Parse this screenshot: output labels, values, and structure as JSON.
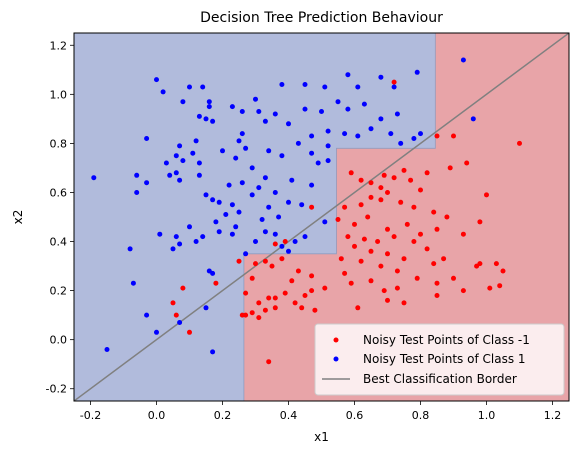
{
  "chart_data": {
    "type": "scatter",
    "title": "Decision Tree Prediction Behaviour",
    "xlabel": "x1",
    "ylabel": "x2",
    "xlim": [
      -0.25,
      1.25
    ],
    "ylim": [
      -0.25,
      1.25
    ],
    "xticks": [
      "-0.2",
      "0.0",
      "0.2",
      "0.4",
      "0.6",
      "0.8",
      "1.0",
      "1.2"
    ],
    "yticks": [
      "-0.2",
      "0.0",
      "0.2",
      "0.4",
      "0.6",
      "0.8",
      "1.0",
      "1.2"
    ],
    "grid": false,
    "legend_position": "lower-right",
    "colors": {
      "class_neg": "#ff0000",
      "class_pos": "#0000ff",
      "region_neg": "#e8a4a8",
      "region_pos": "#b1bbdc",
      "border_line": "#808080"
    },
    "decision_regions": {
      "class_pos_region": [
        [
          -0.25,
          1.25
        ],
        [
          0.845,
          1.25
        ],
        [
          0.845,
          0.78
        ],
        [
          0.545,
          0.78
        ],
        [
          0.545,
          0.35
        ],
        [
          0.265,
          0.35
        ],
        [
          0.265,
          -0.25
        ],
        [
          -0.25,
          -0.25
        ]
      ]
    },
    "border_line": {
      "name": "Best Classification Border",
      "x": [
        -0.25,
        1.25
      ],
      "y": [
        -0.25,
        1.25
      ]
    },
    "series": [
      {
        "name": "Noisy Test Points of Class -1",
        "color": "#ff0000",
        "points": [
          [
            0.72,
            1.05
          ],
          [
            0.85,
            0.83
          ],
          [
            0.9,
            0.83
          ],
          [
            1.1,
            0.8
          ],
          [
            0.94,
            0.72
          ],
          [
            0.89,
            0.7
          ],
          [
            0.82,
            0.68
          ],
          [
            0.75,
            0.69
          ],
          [
            0.69,
            0.67
          ],
          [
            0.59,
            0.68
          ],
          [
            0.62,
            0.65
          ],
          [
            0.65,
            0.64
          ],
          [
            0.68,
            0.62
          ],
          [
            0.72,
            0.66
          ],
          [
            0.77,
            0.65
          ],
          [
            0.8,
            0.61
          ],
          [
            0.7,
            0.6
          ],
          [
            0.65,
            0.58
          ],
          [
            0.57,
            0.54
          ],
          [
            0.62,
            0.55
          ],
          [
            0.68,
            0.57
          ],
          [
            0.74,
            0.56
          ],
          [
            0.78,
            0.54
          ],
          [
            0.84,
            0.52
          ],
          [
            0.88,
            0.5
          ],
          [
            1.0,
            0.59
          ],
          [
            0.98,
            0.48
          ],
          [
            0.55,
            0.49
          ],
          [
            0.6,
            0.47
          ],
          [
            0.64,
            0.5
          ],
          [
            0.7,
            0.45
          ],
          [
            0.76,
            0.47
          ],
          [
            0.8,
            0.43
          ],
          [
            0.85,
            0.45
          ],
          [
            0.93,
            0.43
          ],
          [
            0.58,
            0.42
          ],
          [
            0.63,
            0.41
          ],
          [
            0.67,
            0.4
          ],
          [
            0.72,
            0.42
          ],
          [
            0.78,
            0.4
          ],
          [
            0.82,
            0.37
          ],
          [
            0.6,
            0.38
          ],
          [
            0.65,
            0.36
          ],
          [
            0.7,
            0.35
          ],
          [
            0.75,
            0.33
          ],
          [
            0.84,
            0.31
          ],
          [
            0.87,
            0.33
          ],
          [
            0.56,
            0.33
          ],
          [
            0.62,
            0.32
          ],
          [
            0.68,
            0.3
          ],
          [
            0.73,
            0.28
          ],
          [
            0.79,
            0.25
          ],
          [
            0.57,
            0.27
          ],
          [
            0.65,
            0.24
          ],
          [
            0.59,
            0.23
          ],
          [
            0.69,
            0.2
          ],
          [
            0.73,
            0.21
          ],
          [
            0.85,
            0.23
          ],
          [
            0.9,
            0.25
          ],
          [
            0.93,
            0.2
          ],
          [
            1.01,
            0.21
          ],
          [
            1.04,
            0.22
          ],
          [
            0.97,
            0.3
          ],
          [
            1.03,
            0.31
          ],
          [
            1.05,
            0.28
          ],
          [
            0.98,
            0.31
          ],
          [
            0.85,
            0.18
          ],
          [
            0.7,
            0.16
          ],
          [
            0.75,
            0.15
          ],
          [
            0.61,
            0.13
          ],
          [
            0.51,
            0.21
          ],
          [
            0.47,
            0.2
          ],
          [
            0.45,
            0.18
          ],
          [
            0.41,
            0.24
          ],
          [
            0.39,
            0.19
          ],
          [
            0.43,
            0.28
          ],
          [
            0.47,
            0.26
          ],
          [
            0.38,
            0.33
          ],
          [
            0.33,
            0.32
          ],
          [
            0.35,
            0.3
          ],
          [
            0.3,
            0.31
          ],
          [
            0.29,
            0.25
          ],
          [
            0.34,
            0.17
          ],
          [
            0.36,
            0.17
          ],
          [
            0.31,
            0.15
          ],
          [
            0.33,
            0.12
          ],
          [
            0.29,
            0.11
          ],
          [
            0.31,
            0.09
          ],
          [
            0.36,
            0.13
          ],
          [
            0.42,
            0.15
          ],
          [
            0.44,
            0.13
          ],
          [
            0.48,
            0.12
          ],
          [
            0.27,
            0.1
          ],
          [
            0.26,
            0.1
          ],
          [
            0.27,
            0.19
          ],
          [
            0.25,
            0.32
          ],
          [
            0.34,
            -0.09
          ],
          [
            0.36,
            0.39
          ],
          [
            0.39,
            0.4
          ],
          [
            0.08,
            0.21
          ],
          [
            0.06,
            0.1
          ],
          [
            0.05,
            0.15
          ],
          [
            0.1,
            0.03
          ],
          [
            0.18,
            0.23
          ],
          [
            0.47,
            0.54
          ]
        ]
      },
      {
        "name": "Noisy Test Points of Class 1",
        "color": "#0000ff",
        "points": [
          [
            0.93,
            1.14
          ],
          [
            0.79,
            1.09
          ],
          [
            0.72,
            1.03
          ],
          [
            0.68,
            1.07
          ],
          [
            0.61,
            1.03
          ],
          [
            0.58,
            1.08
          ],
          [
            0.51,
            1.03
          ],
          [
            0.45,
            1.04
          ],
          [
            0.38,
            1.04
          ],
          [
            0.36,
            0.92
          ],
          [
            0.31,
            0.93
          ],
          [
            0.3,
            0.98
          ],
          [
            0.26,
            0.93
          ],
          [
            0.23,
            0.95
          ],
          [
            0.16,
            0.97
          ],
          [
            0.17,
            0.89
          ],
          [
            0.1,
            1.03
          ],
          [
            0.14,
            1.03
          ],
          [
            0.16,
            0.95
          ],
          [
            0.15,
            0.9
          ],
          [
            0.13,
            0.91
          ],
          [
            0.08,
            0.97
          ],
          [
            0.02,
            1.01
          ],
          [
            0.0,
            1.06
          ],
          [
            0.33,
            0.89
          ],
          [
            0.4,
            0.88
          ],
          [
            0.45,
            0.94
          ],
          [
            0.5,
            0.93
          ],
          [
            0.55,
            0.97
          ],
          [
            0.58,
            0.94
          ],
          [
            0.63,
            0.96
          ],
          [
            0.68,
            0.9
          ],
          [
            0.73,
            0.92
          ],
          [
            0.8,
            0.84
          ],
          [
            0.78,
            0.82
          ],
          [
            0.74,
            0.8
          ],
          [
            0.71,
            0.84
          ],
          [
            0.65,
            0.86
          ],
          [
            0.61,
            0.83
          ],
          [
            0.57,
            0.84
          ],
          [
            0.52,
            0.85
          ],
          [
            0.47,
            0.83
          ],
          [
            0.43,
            0.8
          ],
          [
            0.47,
            0.76
          ],
          [
            0.49,
            0.72
          ],
          [
            0.52,
            0.73
          ],
          [
            0.52,
            0.79
          ],
          [
            0.38,
            0.75
          ],
          [
            0.34,
            0.77
          ],
          [
            0.26,
            0.84
          ],
          [
            0.25,
            0.81
          ],
          [
            0.27,
            0.78
          ],
          [
            0.24,
            0.74
          ],
          [
            0.2,
            0.77
          ],
          [
            0.12,
            0.81
          ],
          [
            0.11,
            0.76
          ],
          [
            0.13,
            0.72
          ],
          [
            0.07,
            0.79
          ],
          [
            0.06,
            0.75
          ],
          [
            0.03,
            0.72
          ],
          [
            0.04,
            0.67
          ],
          [
            0.06,
            0.68
          ],
          [
            0.07,
            0.65
          ],
          [
            0.08,
            0.73
          ],
          [
            -0.03,
            0.82
          ],
          [
            -0.06,
            0.67
          ],
          [
            -0.03,
            0.64
          ],
          [
            -0.19,
            0.66
          ],
          [
            -0.06,
            0.6
          ],
          [
            0.13,
            0.67
          ],
          [
            0.22,
            0.63
          ],
          [
            0.26,
            0.64
          ],
          [
            0.29,
            0.7
          ],
          [
            0.33,
            0.66
          ],
          [
            0.36,
            0.6
          ],
          [
            0.31,
            0.62
          ],
          [
            0.29,
            0.59
          ],
          [
            0.23,
            0.55
          ],
          [
            0.19,
            0.56
          ],
          [
            0.21,
            0.51
          ],
          [
            0.15,
            0.59
          ],
          [
            0.17,
            0.57
          ],
          [
            0.25,
            0.52
          ],
          [
            0.32,
            0.49
          ],
          [
            0.34,
            0.54
          ],
          [
            0.37,
            0.5
          ],
          [
            0.4,
            0.56
          ],
          [
            0.44,
            0.55
          ],
          [
            0.41,
            0.65
          ],
          [
            0.47,
            0.63
          ],
          [
            0.45,
            0.42
          ],
          [
            0.42,
            0.4
          ],
          [
            0.4,
            0.36
          ],
          [
            0.38,
            0.38
          ],
          [
            0.36,
            0.43
          ],
          [
            0.33,
            0.44
          ],
          [
            0.3,
            0.4
          ],
          [
            0.27,
            0.35
          ],
          [
            0.24,
            0.46
          ],
          [
            0.23,
            0.43
          ],
          [
            0.19,
            0.44
          ],
          [
            0.18,
            0.48
          ],
          [
            0.14,
            0.42
          ],
          [
            0.12,
            0.4
          ],
          [
            0.1,
            0.46
          ],
          [
            0.07,
            0.39
          ],
          [
            0.06,
            0.42
          ],
          [
            0.05,
            0.37
          ],
          [
            0.01,
            0.43
          ],
          [
            -0.08,
            0.37
          ],
          [
            -0.07,
            0.23
          ],
          [
            -0.03,
            0.1
          ],
          [
            0.0,
            0.03
          ],
          [
            0.07,
            0.07
          ],
          [
            0.16,
            0.28
          ],
          [
            0.17,
            0.27
          ],
          [
            0.15,
            0.13
          ],
          [
            0.17,
            -0.05
          ],
          [
            -0.15,
            -0.04
          ],
          [
            0.96,
            0.9
          ],
          [
            0.51,
            0.48
          ]
        ]
      }
    ]
  }
}
